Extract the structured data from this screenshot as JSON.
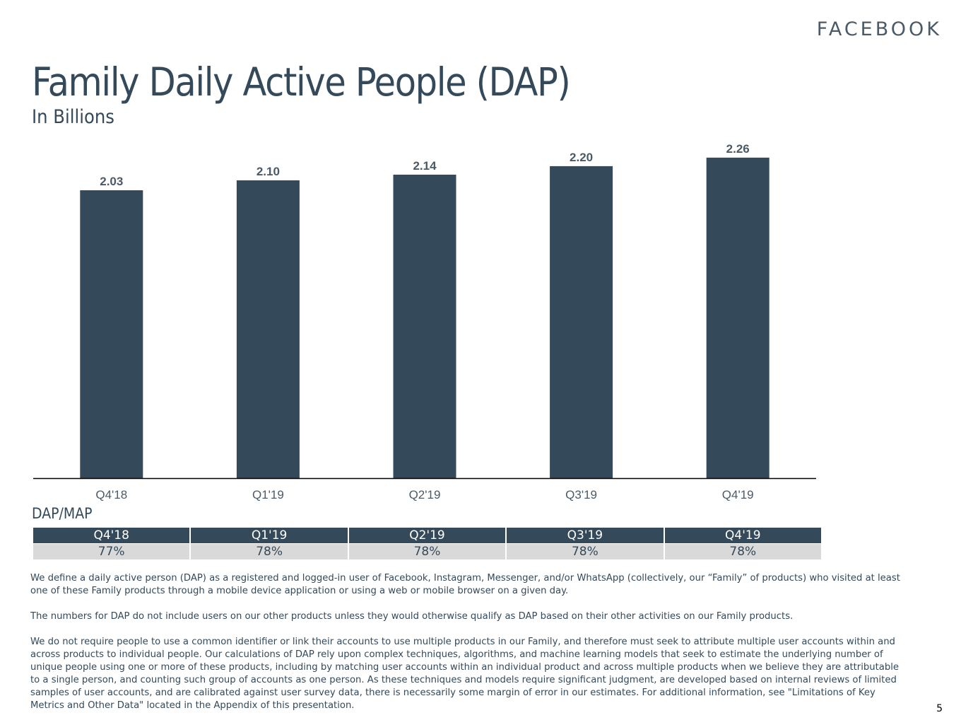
{
  "brand": "FACEBOOK",
  "title": "Family Daily Active People (DAP)",
  "subtitle": "In Billions",
  "colors": {
    "bar": "#34495a",
    "axis": "#000000",
    "label": "#4b5a66",
    "table_header_bg": "#34495a",
    "table_value_bg": "#d9d9d9"
  },
  "chart_data": {
    "type": "bar",
    "categories": [
      "Q4'18",
      "Q1'19",
      "Q2'19",
      "Q3'19",
      "Q4'19"
    ],
    "values": [
      2.03,
      2.1,
      2.14,
      2.2,
      2.26
    ],
    "value_labels": [
      "2.03",
      "2.10",
      "2.14",
      "2.20",
      "2.26"
    ],
    "title": "Family Daily Active People (DAP)",
    "subtitle": "In Billions",
    "xlabel": "",
    "ylabel": "",
    "ylim": [
      0,
      2.5
    ],
    "grid": false,
    "legend": "none"
  },
  "dap_map": {
    "label": "DAP/MAP",
    "headers": [
      "Q4'18",
      "Q1'19",
      "Q2'19",
      "Q3'19",
      "Q4'19"
    ],
    "values": [
      "77%",
      "78%",
      "78%",
      "78%",
      "78%"
    ]
  },
  "notes": [
    "We define a daily active person (DAP) as a registered and logged-in user of Facebook, Instagram, Messenger, and/or WhatsApp (collectively, our “Family” of products) who visited at least one of these Family products through a mobile device application or using a web or mobile browser on a given day.",
    "The numbers for DAP do not include users on our other products unless they would otherwise qualify as DAP based on their other activities on our Family products.",
    "We do not require people to use a common identifier or link their accounts to use multiple products in our Family, and therefore must seek to attribute multiple user accounts within and across products to individual people. Our calculations of DAP rely upon complex techniques, algorithms, and machine learning models that seek to estimate the underlying number of unique people using one or more of these products, including by matching user accounts within an individual product and across multiple products when we believe they are attributable to a single person, and counting such group of accounts as one person. As these techniques and models require significant judgment, are developed based on internal reviews of limited samples of user accounts, and are calibrated against user survey data, there is necessarily some margin of error in our estimates. For additional information, see \"Limitations of Key Metrics and Other Data\" located in the Appendix of this presentation."
  ],
  "page_number": "5"
}
